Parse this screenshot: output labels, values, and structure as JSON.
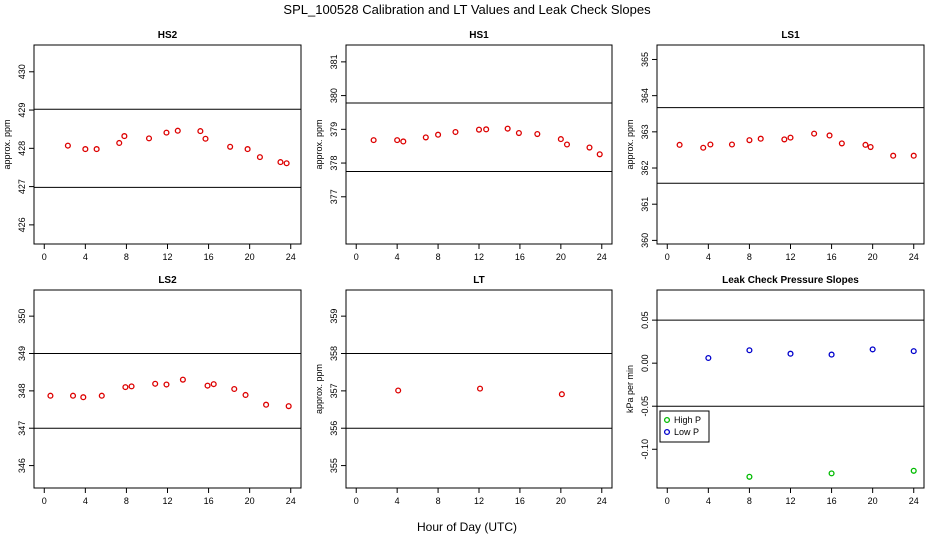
{
  "figure": {
    "title": "SPL_100528  Calibration and LT Values and Leak Check Slopes",
    "xlabel": "Hour of Day (UTC)"
  },
  "chart_data": [
    {
      "type": "scatter",
      "title": "HS2",
      "ylabel": "approx. ppm",
      "xlim": [
        -1,
        25
      ],
      "ylim": [
        425.5,
        430.7
      ],
      "xticks": [
        0,
        4,
        8,
        12,
        16,
        20,
        24
      ],
      "yticks": [
        426,
        427,
        428,
        429,
        430
      ],
      "hlines": [
        429.02,
        426.98
      ],
      "color": "#dd0000",
      "x": [
        2.3,
        4.0,
        5.1,
        7.3,
        7.8,
        10.2,
        11.9,
        13.0,
        15.2,
        15.7,
        18.1,
        19.8,
        21.0,
        23.0,
        23.6
      ],
      "y": [
        428.07,
        427.98,
        427.98,
        428.14,
        428.32,
        428.26,
        428.41,
        428.46,
        428.45,
        428.25,
        428.04,
        427.98,
        427.77,
        427.64,
        427.61
      ]
    },
    {
      "type": "scatter",
      "title": "HS1",
      "ylabel": "approx. ppm",
      "xlim": [
        -1,
        25
      ],
      "ylim": [
        375.6,
        381.5
      ],
      "xticks": [
        0,
        4,
        8,
        12,
        16,
        20,
        24
      ],
      "yticks": [
        377,
        378,
        379,
        380,
        381
      ],
      "hlines": [
        379.78,
        377.75
      ],
      "color": "#dd0000",
      "x": [
        1.7,
        4.0,
        4.6,
        6.8,
        8.0,
        9.7,
        12.0,
        12.7,
        14.8,
        15.9,
        17.7,
        20.0,
        20.6,
        22.8,
        23.8
      ],
      "y": [
        378.68,
        378.68,
        378.64,
        378.76,
        378.84,
        378.92,
        378.99,
        379.0,
        379.02,
        378.89,
        378.86,
        378.71,
        378.55,
        378.46,
        378.26
      ]
    },
    {
      "type": "scatter",
      "title": "LS1",
      "ylabel": "approx. ppm",
      "xlim": [
        -1,
        25
      ],
      "ylim": [
        359.9,
        365.4
      ],
      "xticks": [
        0,
        4,
        8,
        12,
        16,
        20,
        24
      ],
      "yticks": [
        360,
        361,
        362,
        363,
        364,
        365
      ],
      "hlines": [
        363.67,
        361.58
      ],
      "color": "#dd0000",
      "x": [
        1.2,
        3.5,
        4.2,
        6.3,
        8.0,
        9.1,
        11.4,
        12.0,
        14.3,
        15.8,
        17.0,
        19.3,
        19.8,
        22.0,
        24.0
      ],
      "y": [
        362.64,
        362.56,
        362.65,
        362.65,
        362.77,
        362.81,
        362.79,
        362.84,
        362.95,
        362.9,
        362.68,
        362.64,
        362.58,
        362.34,
        362.34
      ]
    },
    {
      "type": "scatter",
      "title": "LS2",
      "ylabel": "",
      "xlim": [
        -1,
        25
      ],
      "ylim": [
        345.4,
        350.7
      ],
      "xticks": [
        0,
        4,
        8,
        12,
        16,
        20,
        24
      ],
      "yticks": [
        346,
        347,
        348,
        349,
        350
      ],
      "hlines": [
        349.0,
        347.0
      ],
      "color": "#dd0000",
      "x": [
        0.6,
        2.8,
        3.8,
        5.6,
        7.9,
        8.5,
        10.8,
        11.9,
        13.5,
        15.9,
        16.5,
        18.5,
        19.6,
        21.6,
        23.8
      ],
      "y": [
        347.87,
        347.87,
        347.83,
        347.87,
        348.1,
        348.12,
        348.19,
        348.17,
        348.3,
        348.14,
        348.18,
        348.05,
        347.89,
        347.63,
        347.59
      ]
    },
    {
      "type": "scatter",
      "title": "LT",
      "ylabel": "approx. ppm",
      "xlim": [
        -1,
        25
      ],
      "ylim": [
        354.4,
        359.7
      ],
      "xticks": [
        0,
        4,
        8,
        12,
        16,
        20,
        24
      ],
      "yticks": [
        355,
        356,
        357,
        358,
        359
      ],
      "hlines": [
        358.0,
        356.0
      ],
      "color": "#dd0000",
      "x": [
        4.1,
        12.1,
        20.1
      ],
      "y": [
        357.01,
        357.06,
        356.91
      ]
    },
    {
      "type": "scatter",
      "title": "Leak Check Pressure Slopes",
      "ylabel": "kPa per min",
      "xlim": [
        -1,
        25
      ],
      "ylim": [
        -0.145,
        0.085
      ],
      "xticks": [
        0,
        4,
        8,
        12,
        16,
        20,
        24
      ],
      "yticks": [
        0.05,
        0.0,
        -0.05,
        -0.1
      ],
      "ytick_labels": [
        "0.05",
        "0.00",
        "-0.05",
        "-0.10"
      ],
      "hlines": [
        0.05,
        -0.05
      ],
      "legend": {
        "placement": "bottom-left"
      },
      "series": [
        {
          "name": "High P",
          "color": "#00bb00",
          "x": [
            8.0,
            16.0,
            24.0
          ],
          "y": [
            -0.132,
            -0.128,
            -0.125
          ]
        },
        {
          "name": "Low P",
          "color": "#0000cc",
          "x": [
            4.0,
            8.0,
            12.0,
            16.0,
            20.0,
            24.0
          ],
          "y": [
            0.006,
            0.015,
            0.011,
            0.01,
            0.016,
            0.014
          ]
        }
      ]
    }
  ]
}
